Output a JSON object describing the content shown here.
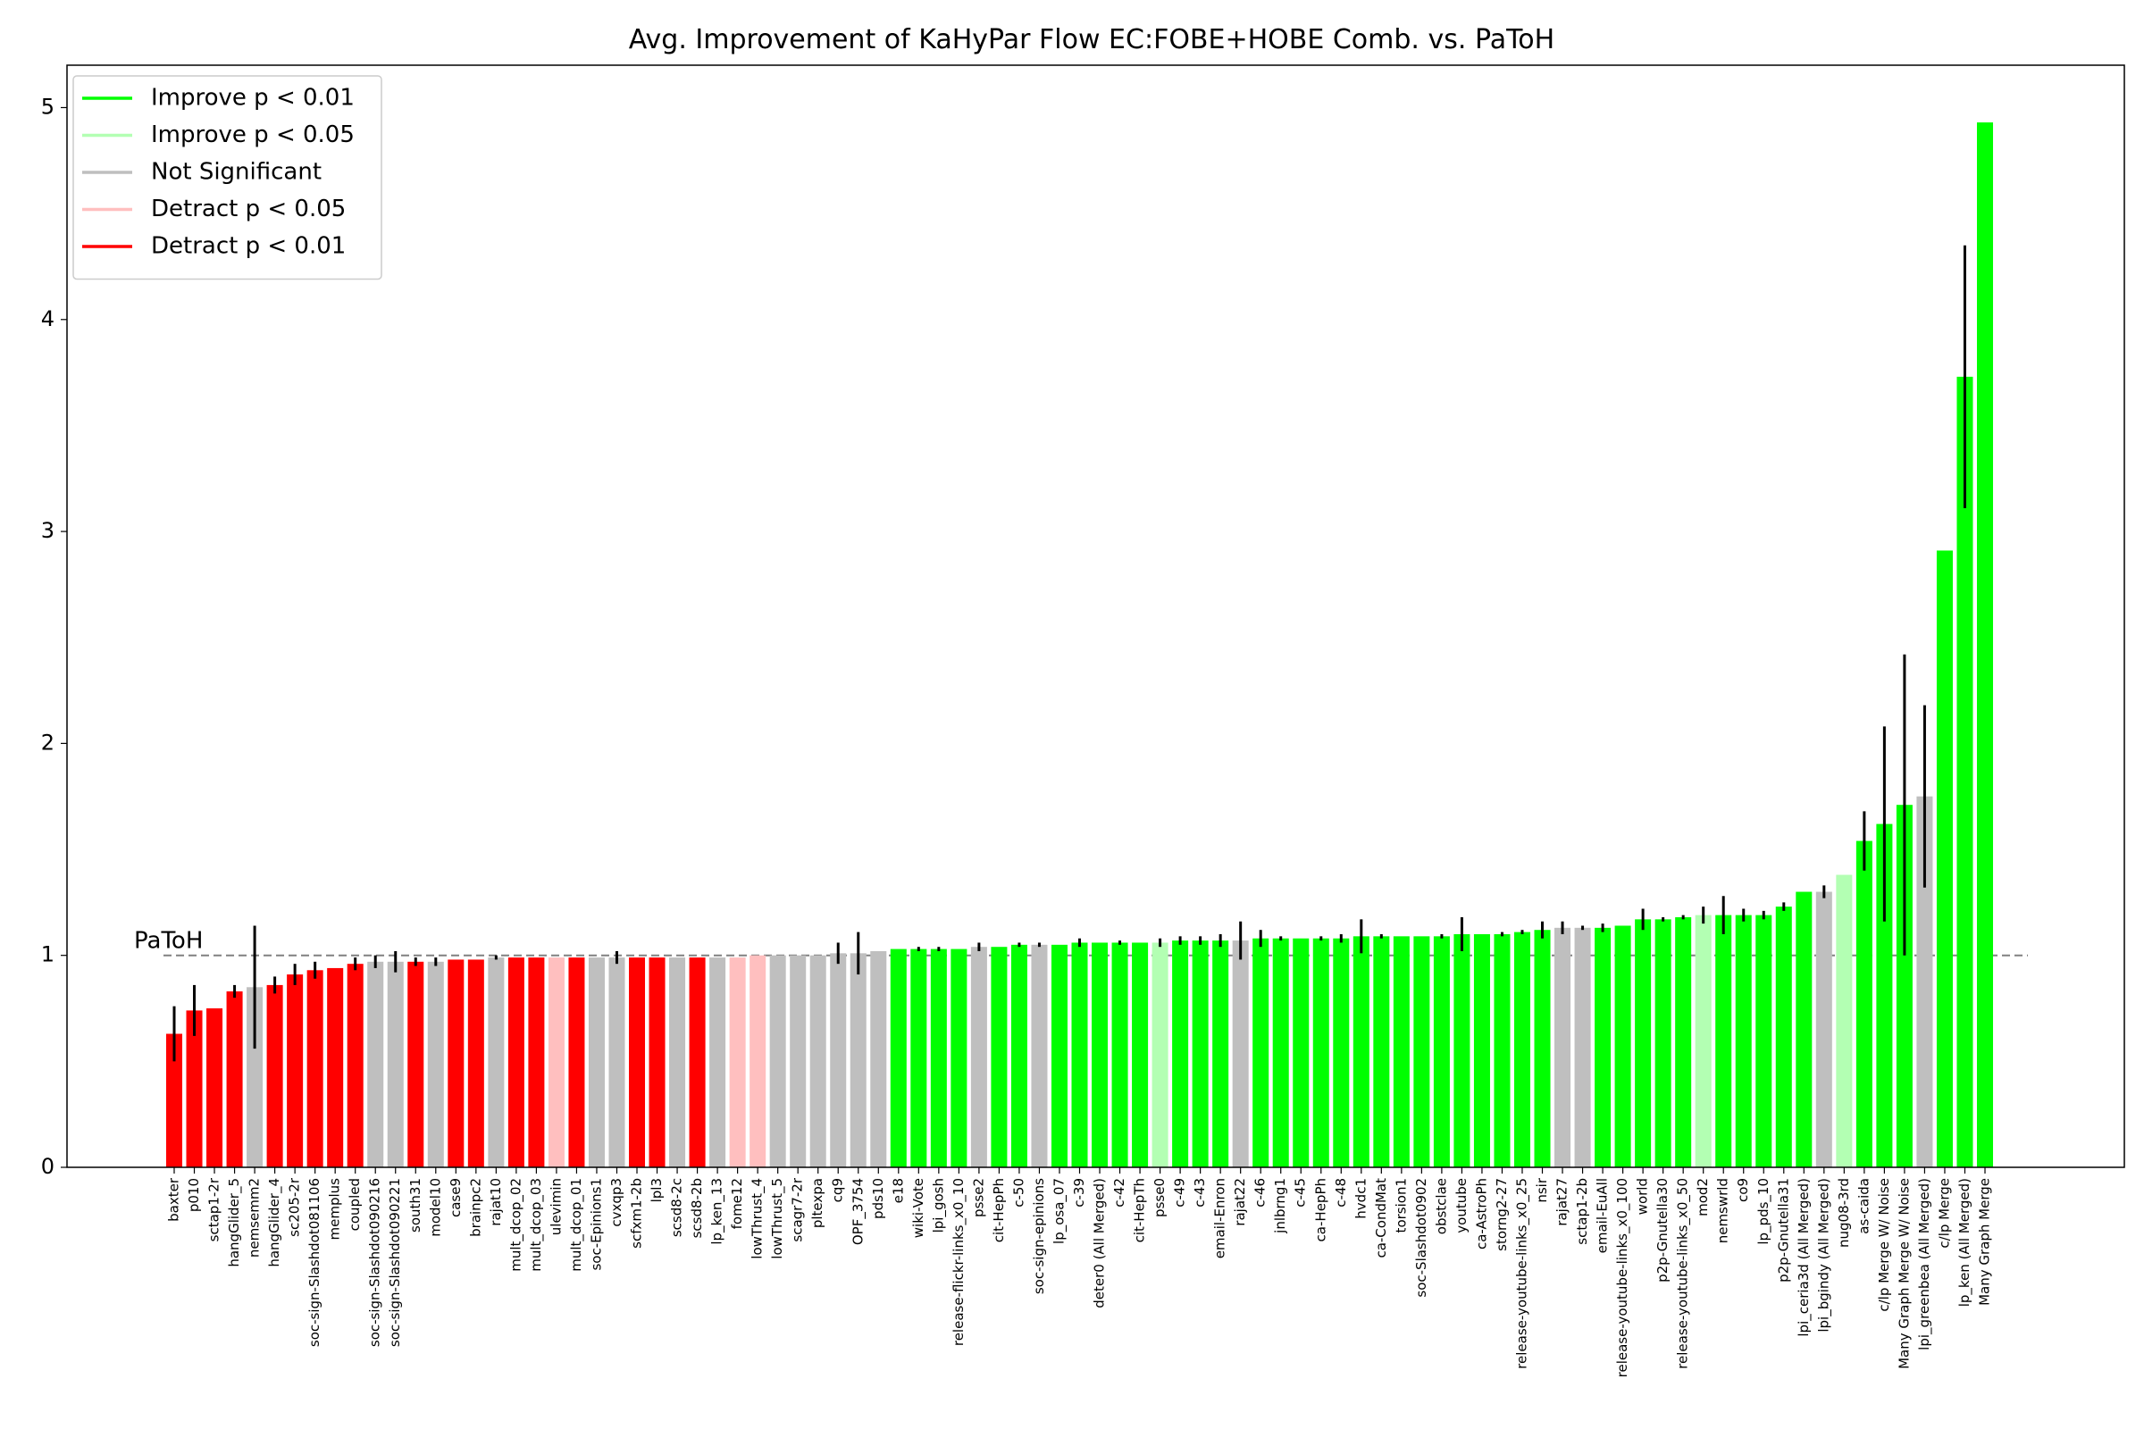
{
  "chart_data": {
    "type": "bar",
    "title": "Avg. Improvement of KaHyPar Flow EC:FOBE+HOBE Comb. vs. PaToH",
    "xlabel": "",
    "ylabel": "",
    "ylim": [
      0,
      5.2
    ],
    "yticks": [
      0,
      1,
      2,
      3,
      4,
      5
    ],
    "grid": false,
    "legend_position": "top-left",
    "reference_line": {
      "value": 1,
      "label": "PaToH",
      "color": "#808080"
    },
    "legend": [
      {
        "label": "Improve p < 0.01",
        "color": "#00ff00"
      },
      {
        "label": "Improve p < 0.05",
        "color": "#b3ffb3"
      },
      {
        "label": "Not Significant",
        "color": "#bfbfbf"
      },
      {
        "label": "Detract p < 0.05",
        "color": "#ffbfbf"
      },
      {
        "label": "Detract p < 0.01",
        "color": "#ff0000"
      }
    ],
    "bars": [
      {
        "label": "baxter",
        "value": 0.63,
        "err": 0.13,
        "sig": "d01"
      },
      {
        "label": "p010",
        "value": 0.74,
        "err": 0.12,
        "sig": "d01"
      },
      {
        "label": "sctap1-2r",
        "value": 0.75,
        "err": 0.0,
        "sig": "d01"
      },
      {
        "label": "hangGlider_5",
        "value": 0.83,
        "err": 0.03,
        "sig": "d01"
      },
      {
        "label": "nemsemm2",
        "value": 0.85,
        "err": 0.29,
        "sig": "ns"
      },
      {
        "label": "hangGlider_4",
        "value": 0.86,
        "err": 0.04,
        "sig": "d01"
      },
      {
        "label": "sc205-2r",
        "value": 0.91,
        "err": 0.05,
        "sig": "d01"
      },
      {
        "label": "soc-sign-Slashdot081106",
        "value": 0.93,
        "err": 0.04,
        "sig": "d01"
      },
      {
        "label": "memplus",
        "value": 0.94,
        "err": 0.0,
        "sig": "d01"
      },
      {
        "label": "coupled",
        "value": 0.96,
        "err": 0.03,
        "sig": "d01"
      },
      {
        "label": "soc-sign-Slashdot090216",
        "value": 0.97,
        "err": 0.03,
        "sig": "ns"
      },
      {
        "label": "soc-sign-Slashdot090221",
        "value": 0.97,
        "err": 0.05,
        "sig": "ns"
      },
      {
        "label": "south31",
        "value": 0.97,
        "err": 0.02,
        "sig": "d01"
      },
      {
        "label": "model10",
        "value": 0.97,
        "err": 0.02,
        "sig": "ns"
      },
      {
        "label": "case9",
        "value": 0.98,
        "err": 0.0,
        "sig": "d01"
      },
      {
        "label": "brainpc2",
        "value": 0.98,
        "err": 0.0,
        "sig": "d01"
      },
      {
        "label": "rajat10",
        "value": 0.99,
        "err": 0.01,
        "sig": "ns"
      },
      {
        "label": "mult_dcop_02",
        "value": 0.99,
        "err": 0.0,
        "sig": "d01"
      },
      {
        "label": "mult_dcop_03",
        "value": 0.99,
        "err": 0.0,
        "sig": "d01"
      },
      {
        "label": "ulevimin",
        "value": 0.99,
        "err": 0.0,
        "sig": "d05"
      },
      {
        "label": "mult_dcop_01",
        "value": 0.99,
        "err": 0.0,
        "sig": "d01"
      },
      {
        "label": "soc-Epinions1",
        "value": 0.99,
        "err": 0.0,
        "sig": "ns"
      },
      {
        "label": "cvxqp3",
        "value": 0.99,
        "err": 0.03,
        "sig": "ns"
      },
      {
        "label": "scfxm1-2b",
        "value": 0.99,
        "err": 0.0,
        "sig": "d01"
      },
      {
        "label": "lpl3",
        "value": 0.99,
        "err": 0.0,
        "sig": "d01"
      },
      {
        "label": "scsd8-2c",
        "value": 0.99,
        "err": 0.0,
        "sig": "ns"
      },
      {
        "label": "scsd8-2b",
        "value": 0.99,
        "err": 0.0,
        "sig": "d01"
      },
      {
        "label": "lp_ken_13",
        "value": 0.99,
        "err": 0.0,
        "sig": "ns"
      },
      {
        "label": "fome12",
        "value": 0.99,
        "err": 0.0,
        "sig": "d05"
      },
      {
        "label": "lowThrust_4",
        "value": 1.0,
        "err": 0.0,
        "sig": "d05"
      },
      {
        "label": "lowThrust_5",
        "value": 1.0,
        "err": 0.0,
        "sig": "ns"
      },
      {
        "label": "scagr7-2r",
        "value": 1.0,
        "err": 0.0,
        "sig": "ns"
      },
      {
        "label": "pltexpa",
        "value": 1.0,
        "err": 0.0,
        "sig": "ns"
      },
      {
        "label": "cq9",
        "value": 1.01,
        "err": 0.05,
        "sig": "ns"
      },
      {
        "label": "OPF_3754",
        "value": 1.01,
        "err": 0.1,
        "sig": "ns"
      },
      {
        "label": "pds10",
        "value": 1.02,
        "err": 0.0,
        "sig": "ns"
      },
      {
        "label": "e18",
        "value": 1.03,
        "err": 0.0,
        "sig": "i01"
      },
      {
        "label": "wiki-Vote",
        "value": 1.03,
        "err": 0.01,
        "sig": "i01"
      },
      {
        "label": "lpi_gosh",
        "value": 1.03,
        "err": 0.01,
        "sig": "i01"
      },
      {
        "label": "release-flickr-links_x0_10",
        "value": 1.03,
        "err": 0.0,
        "sig": "i01"
      },
      {
        "label": "psse2",
        "value": 1.04,
        "err": 0.02,
        "sig": "ns"
      },
      {
        "label": "cit-HepPh",
        "value": 1.04,
        "err": 0.0,
        "sig": "i01"
      },
      {
        "label": "c-50",
        "value": 1.05,
        "err": 0.01,
        "sig": "i01"
      },
      {
        "label": "soc-sign-epinions",
        "value": 1.05,
        "err": 0.01,
        "sig": "ns"
      },
      {
        "label": "lp_osa_07",
        "value": 1.05,
        "err": 0.0,
        "sig": "i01"
      },
      {
        "label": "c-39",
        "value": 1.06,
        "err": 0.02,
        "sig": "i01"
      },
      {
        "label": "deter0 (All Merged)",
        "value": 1.06,
        "err": 0.0,
        "sig": "i01"
      },
      {
        "label": "c-42",
        "value": 1.06,
        "err": 0.01,
        "sig": "i01"
      },
      {
        "label": "cit-HepTh",
        "value": 1.06,
        "err": 0.0,
        "sig": "i01"
      },
      {
        "label": "psse0",
        "value": 1.06,
        "err": 0.02,
        "sig": "i05"
      },
      {
        "label": "c-49",
        "value": 1.07,
        "err": 0.02,
        "sig": "i01"
      },
      {
        "label": "c-43",
        "value": 1.07,
        "err": 0.02,
        "sig": "i01"
      },
      {
        "label": "email-Enron",
        "value": 1.07,
        "err": 0.03,
        "sig": "i01"
      },
      {
        "label": "rajat22",
        "value": 1.07,
        "err": 0.09,
        "sig": "ns"
      },
      {
        "label": "c-46",
        "value": 1.08,
        "err": 0.04,
        "sig": "i01"
      },
      {
        "label": "jnlbrng1",
        "value": 1.08,
        "err": 0.01,
        "sig": "i01"
      },
      {
        "label": "c-45",
        "value": 1.08,
        "err": 0.0,
        "sig": "i01"
      },
      {
        "label": "ca-HepPh",
        "value": 1.08,
        "err": 0.01,
        "sig": "i01"
      },
      {
        "label": "c-48",
        "value": 1.08,
        "err": 0.02,
        "sig": "i01"
      },
      {
        "label": "hvdc1",
        "value": 1.09,
        "err": 0.08,
        "sig": "i01"
      },
      {
        "label": "ca-CondMat",
        "value": 1.09,
        "err": 0.01,
        "sig": "i01"
      },
      {
        "label": "torsion1",
        "value": 1.09,
        "err": 0.0,
        "sig": "i01"
      },
      {
        "label": "soc-Slashdot0902",
        "value": 1.09,
        "err": 0.0,
        "sig": "i01"
      },
      {
        "label": "obstclae",
        "value": 1.09,
        "err": 0.01,
        "sig": "i01"
      },
      {
        "label": "youtube",
        "value": 1.1,
        "err": 0.08,
        "sig": "i01"
      },
      {
        "label": "ca-AstroPh",
        "value": 1.1,
        "err": 0.0,
        "sig": "i01"
      },
      {
        "label": "storng2-27",
        "value": 1.1,
        "err": 0.01,
        "sig": "i01"
      },
      {
        "label": "release-youtube-links_x0_25",
        "value": 1.11,
        "err": 0.01,
        "sig": "i01"
      },
      {
        "label": "nsir",
        "value": 1.12,
        "err": 0.04,
        "sig": "i01"
      },
      {
        "label": "rajat27",
        "value": 1.13,
        "err": 0.03,
        "sig": "ns"
      },
      {
        "label": "sctap1-2b",
        "value": 1.13,
        "err": 0.01,
        "sig": "ns"
      },
      {
        "label": "email-EuAll",
        "value": 1.13,
        "err": 0.02,
        "sig": "i01"
      },
      {
        "label": "release-youtube-links_x0_100",
        "value": 1.14,
        "err": 0.0,
        "sig": "i01"
      },
      {
        "label": "world",
        "value": 1.17,
        "err": 0.05,
        "sig": "i01"
      },
      {
        "label": "p2p-Gnutella30",
        "value": 1.17,
        "err": 0.01,
        "sig": "i01"
      },
      {
        "label": "release-youtube-links_x0_50",
        "value": 1.18,
        "err": 0.01,
        "sig": "i01"
      },
      {
        "label": "mod2",
        "value": 1.19,
        "err": 0.04,
        "sig": "i05"
      },
      {
        "label": "nemswrld",
        "value": 1.19,
        "err": 0.09,
        "sig": "i01"
      },
      {
        "label": "co9",
        "value": 1.19,
        "err": 0.03,
        "sig": "i01"
      },
      {
        "label": "lp_pds_10",
        "value": 1.19,
        "err": 0.02,
        "sig": "i01"
      },
      {
        "label": "p2p-Gnutella31",
        "value": 1.23,
        "err": 0.02,
        "sig": "i01"
      },
      {
        "label": "lpi_ceria3d (All Merged)",
        "value": 1.3,
        "err": 0.0,
        "sig": "i01"
      },
      {
        "label": "lpi_bgindy (All Merged)",
        "value": 1.3,
        "err": 0.03,
        "sig": "ns"
      },
      {
        "label": "nug08-3rd",
        "value": 1.38,
        "err": 0.0,
        "sig": "i05"
      },
      {
        "label": "as-caida",
        "value": 1.54,
        "err": 0.14,
        "sig": "i01"
      },
      {
        "label": "c/lp Merge W/ Noise",
        "value": 1.62,
        "err": 0.46,
        "sig": "i01"
      },
      {
        "label": "Many Graph Merge W/ Noise",
        "value": 1.71,
        "err": 0.71,
        "sig": "i01"
      },
      {
        "label": "lpi_greenbea (All Merged)",
        "value": 1.75,
        "err": 0.43,
        "sig": "ns"
      },
      {
        "label": "c/lp Merge",
        "value": 2.91,
        "err": 0.0,
        "sig": "i01"
      },
      {
        "label": "lp_ken (All Merged)",
        "value": 3.73,
        "err": 0.62,
        "sig": "i01"
      },
      {
        "label": "Many Graph Merge",
        "value": 4.93,
        "err": 0.0,
        "sig": "i01"
      }
    ],
    "significance_colors": {
      "i01": "#00ff00",
      "i05": "#b3ffb3",
      "ns": "#bfbfbf",
      "d05": "#ffbfbf",
      "d01": "#ff0000"
    }
  }
}
